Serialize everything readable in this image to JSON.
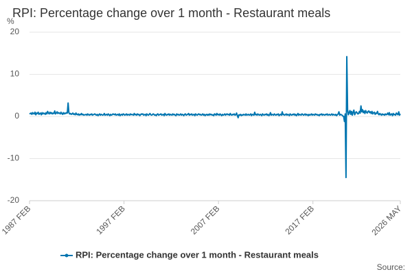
{
  "chart_data": {
    "type": "line",
    "title": "RPI: Percentage change over 1 month - Restaurant meals",
    "y_unit": "%",
    "source": "Source:",
    "grid": true,
    "ylim": [
      -20,
      20
    ],
    "yticks": [
      -20,
      -10,
      0,
      10,
      20
    ],
    "categories": [
      "1987 FEB",
      null,
      null,
      null,
      null,
      null,
      null,
      null,
      null,
      null,
      null,
      null,
      null,
      null,
      null,
      null,
      null,
      null,
      null,
      null,
      null,
      null,
      null,
      null,
      null,
      null,
      null,
      null,
      null,
      null,
      null,
      null,
      null,
      null,
      null,
      null,
      null,
      null,
      null,
      null,
      null,
      null,
      null,
      null,
      null,
      null,
      null,
      null,
      null,
      null,
      null,
      null,
      null,
      null,
      null,
      null,
      null,
      null,
      null,
      null,
      null,
      null,
      null,
      null,
      null,
      null,
      null,
      null,
      null,
      null,
      null,
      null,
      null,
      null,
      null,
      null,
      null,
      null,
      null,
      null,
      null,
      null,
      null,
      null,
      null,
      null,
      null,
      null,
      null,
      null,
      null,
      null,
      null,
      null,
      null,
      null,
      null,
      null,
      null,
      null,
      null,
      null,
      null,
      null,
      null,
      null,
      null,
      null,
      null,
      null,
      null,
      null,
      null,
      null,
      null,
      null,
      null,
      null,
      null,
      null,
      "1997 FEB",
      null,
      null,
      null,
      null,
      null,
      null,
      null,
      null,
      null,
      null,
      null,
      null,
      null,
      null,
      null,
      null,
      null,
      null,
      null,
      null,
      null,
      null,
      null,
      null,
      null,
      null,
      null,
      null,
      null,
      null,
      null,
      null,
      null,
      null,
      null,
      null,
      null,
      null,
      null,
      null,
      null,
      null,
      null,
      null,
      null,
      null,
      null,
      null,
      null,
      null,
      null,
      null,
      null,
      null,
      null,
      null,
      null,
      null,
      null,
      null,
      null,
      null,
      null,
      null,
      null,
      null,
      null,
      null,
      null,
      null,
      null,
      null,
      null,
      null,
      null,
      null,
      null,
      null,
      null,
      null,
      null,
      null,
      null,
      null,
      null,
      null,
      null,
      null,
      null,
      null,
      null,
      null,
      null,
      null,
      null,
      null,
      null,
      null,
      null,
      null,
      null,
      null,
      null,
      null,
      null,
      null,
      null,
      null,
      null,
      null,
      null,
      null,
      null,
      null,
      null,
      null,
      null,
      null,
      null,
      "2007 FEB",
      null,
      null,
      null,
      null,
      null,
      null,
      null,
      null,
      null,
      null,
      null,
      null,
      null,
      null,
      null,
      null,
      null,
      null,
      null,
      null,
      null,
      null,
      null,
      null,
      null,
      null,
      null,
      null,
      null,
      null,
      null,
      null,
      null,
      null,
      null,
      null,
      null,
      null,
      null,
      null,
      null,
      null,
      null,
      null,
      null,
      null,
      null,
      null,
      null,
      null,
      null,
      null,
      null,
      null,
      null,
      null,
      null,
      null,
      null,
      null,
      null,
      null,
      null,
      null,
      null,
      null,
      null,
      null,
      null,
      null,
      null,
      null,
      null,
      null,
      null,
      null,
      null,
      null,
      null,
      null,
      null,
      null,
      null,
      null,
      null,
      null,
      null,
      null,
      null,
      null,
      null,
      null,
      null,
      null,
      null,
      null,
      null,
      null,
      null,
      null,
      null,
      null,
      null,
      null,
      null,
      null,
      null,
      null,
      null,
      null,
      null,
      null,
      null,
      null,
      null,
      null,
      null,
      null,
      null,
      "2017 FEB",
      null,
      null,
      null,
      null,
      null,
      null,
      null,
      null,
      null,
      null,
      null,
      null,
      null,
      null,
      null,
      null,
      null,
      null,
      null,
      null,
      null,
      null,
      null,
      null,
      null,
      null,
      null,
      null,
      null,
      null,
      null,
      null,
      null,
      null,
      null,
      null,
      null,
      null,
      null,
      null,
      null,
      null,
      null,
      null,
      null,
      null,
      null,
      null,
      null,
      null,
      null,
      null,
      null,
      null,
      null,
      null,
      null,
      null,
      null,
      null,
      null,
      null,
      null,
      null,
      null,
      null,
      null,
      null,
      null,
      null,
      null,
      null,
      null,
      null,
      null,
      null,
      null,
      null,
      null,
      null,
      null,
      null,
      null,
      null,
      null,
      null,
      null,
      null,
      null,
      null,
      null,
      null,
      null,
      null,
      null,
      null,
      null,
      null,
      null,
      null,
      null,
      null,
      null,
      null,
      null,
      null,
      null,
      null,
      null,
      null,
      "2026 MAY"
    ],
    "series": [
      {
        "name": "RPI: Percentage change over 1 month - Restaurant meals",
        "color": "#0075b0",
        "values": [
          0.6,
          0.7,
          0.8,
          0.5,
          0.9,
          0.7,
          0.6,
          1.0,
          0.4,
          0.8,
          0.7,
          1.0,
          0.5,
          0.7,
          0.8,
          0.4,
          0.9,
          0.6,
          0.8,
          0.7,
          0.5,
          0.9,
          0.6,
          1.2,
          0.8,
          0.6,
          1.0,
          0.7,
          0.9,
          0.6,
          0.8,
          0.7,
          1.3,
          0.6,
          0.8,
          1.1,
          0.7,
          0.9,
          0.8,
          0.6,
          1.0,
          0.7,
          0.5,
          0.9,
          0.6,
          0.8,
          0.7,
          0.9,
          0.8,
          3.2,
          0.9,
          0.6,
          0.7,
          0.5,
          0.6,
          0.8,
          0.5,
          0.6,
          0.4,
          0.8,
          0.5,
          0.4,
          0.6,
          0.3,
          0.5,
          0.4,
          0.7,
          0.4,
          0.5,
          0.3,
          0.4,
          0.4,
          0.5,
          0.3,
          0.6,
          0.4,
          0.3,
          0.5,
          0.4,
          0.6,
          0.3,
          0.4,
          0.5,
          0.6,
          0.4,
          0.3,
          0.5,
          0.2,
          0.4,
          0.6,
          0.3,
          0.5,
          0.4,
          0.3,
          0.4,
          0.7,
          0.3,
          0.4,
          0.5,
          0.3,
          0.6,
          0.4,
          0.2,
          0.5,
          0.3,
          0.4,
          0.6,
          0.5,
          0.4,
          0.6,
          0.3,
          0.4,
          0.5,
          0.3,
          0.6,
          0.2,
          0.4,
          0.5,
          0.3,
          0.6,
          0.5,
          0.3,
          0.4,
          0.6,
          0.3,
          0.5,
          0.4,
          0.3,
          0.6,
          0.4,
          0.5,
          0.4,
          0.3,
          0.7,
          0.4,
          0.5,
          0.3,
          0.6,
          0.4,
          0.5,
          0.2,
          0.4,
          0.6,
          0.5,
          0.6,
          0.3,
          0.4,
          0.5,
          0.2,
          0.6,
          0.4,
          0.3,
          0.5,
          0.7,
          0.4,
          0.3,
          0.4,
          0.6,
          0.5,
          0.3,
          0.4,
          0.2,
          0.5,
          0.6,
          0.3,
          0.4,
          0.5,
          0.6,
          0.3,
          0.4,
          0.5,
          0.2,
          0.7,
          0.4,
          0.3,
          0.5,
          0.4,
          0.6,
          0.3,
          0.5,
          0.4,
          0.3,
          0.6,
          0.4,
          0.5,
          0.3,
          0.2,
          0.6,
          0.4,
          0.5,
          0.3,
          0.4,
          0.6,
          0.3,
          0.5,
          0.4,
          0.2,
          0.5,
          0.6,
          0.3,
          0.4,
          0.5,
          0.7,
          0.3,
          0.5,
          0.4,
          0.6,
          0.3,
          0.4,
          0.5,
          0.2,
          0.6,
          0.4,
          0.3,
          0.5,
          0.6,
          0.4,
          0.5,
          0.3,
          0.4,
          0.6,
          0.3,
          0.5,
          0.2,
          0.4,
          0.5,
          0.3,
          0.5,
          0.3,
          0.6,
          0.4,
          0.5,
          0.3,
          0.4,
          0.2,
          0.6,
          0.5,
          0.3,
          0.7,
          0.4,
          0.5,
          0.3,
          0.6,
          0.4,
          0.2,
          0.5,
          0.3,
          0.4,
          0.6,
          0.3,
          0.5,
          0.6,
          0.4,
          0.5,
          0.3,
          0.7,
          0.4,
          0.3,
          0.5,
          0.4,
          0.6,
          0.3,
          0.4,
          0.8,
          0.2,
          -0.3,
          0.4,
          0.3,
          0.5,
          0.2,
          0.4,
          0.3,
          0.5,
          0.4,
          0.3,
          0.6,
          0.3,
          0.4,
          0.5,
          0.3,
          0.4,
          0.6,
          0.2,
          0.5,
          0.4,
          0.3,
          1.0,
          0.4,
          0.5,
          0.3,
          0.6,
          0.4,
          0.3,
          0.5,
          0.4,
          0.2,
          0.6,
          0.4,
          0.3,
          0.5,
          0.4,
          0.6,
          0.3,
          0.5,
          0.2,
          0.4,
          0.9,
          0.3,
          0.5,
          0.4,
          0.3,
          0.6,
          0.4,
          0.3,
          0.5,
          0.4,
          0.6,
          0.2,
          0.4,
          0.5,
          0.3,
          1.1,
          0.4,
          0.5,
          0.3,
          0.4,
          0.6,
          0.3,
          0.5,
          0.4,
          0.2,
          0.6,
          0.4,
          0.3,
          0.5,
          0.4,
          0.6,
          0.3,
          0.5,
          0.2,
          0.4,
          0.7,
          0.3,
          0.5,
          0.4,
          0.3,
          0.6,
          0.5,
          0.3,
          0.4,
          0.6,
          0.3,
          0.5,
          0.4,
          0.2,
          0.5,
          0.3,
          0.4,
          0.6,
          0.3,
          0.5,
          0.4,
          0.3,
          0.6,
          0.4,
          0.5,
          0.3,
          0.4,
          0.2,
          0.5,
          0.4,
          0.6,
          0.3,
          0.5,
          0.4,
          0.3,
          0.5,
          0.4,
          0.6,
          0.3,
          0.4,
          0.5,
          0.3,
          0.4,
          0.6,
          0.3,
          0.5,
          0.4,
          0.3,
          0.5,
          0.2,
          0.4,
          0.6,
          1.1,
          0.3,
          0.5,
          0.4,
          0.3,
          0.1,
          0.0,
          -1.2,
          0.6,
          -14.5,
          14.2,
          1.6,
          0.4,
          0.9,
          1.4,
          0.5,
          1.2,
          0.3,
          1.0,
          1.5,
          0.4,
          0.8,
          1.1,
          0.9,
          0.6,
          0.7,
          1.2,
          0.8,
          2.5,
          1.1,
          1.6,
          0.9,
          1.3,
          0.7,
          1.4,
          1.0,
          0.8,
          1.2,
          1.3,
          0.9,
          1.1,
          0.7,
          1.2,
          0.6,
          0.9,
          1.0,
          0.5,
          0.8,
          0.7,
          1.2,
          0.6,
          0.4,
          0.7,
          0.5,
          0.3,
          0.6,
          0.4,
          0.5,
          0.3,
          0.6,
          0.4,
          0.5,
          0.8,
          0.4,
          0.9,
          0.3,
          0.5,
          0.6,
          0.2,
          0.7,
          0.4,
          0.5,
          0.3,
          0.8,
          0.6,
          0.4,
          1.1,
          0.3,
          0.6
        ]
      }
    ]
  }
}
